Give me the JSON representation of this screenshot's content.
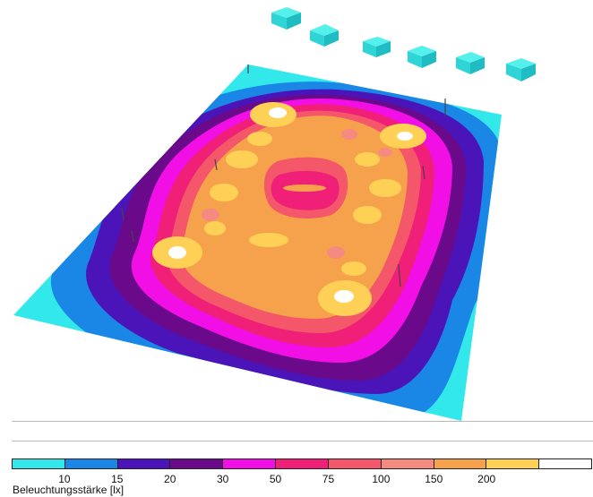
{
  "legend": {
    "title": "Beleuchtungsstärke [lx]",
    "ticks": [
      "10",
      "15",
      "20",
      "30",
      "50",
      "75",
      "100",
      "150",
      "200"
    ],
    "colors": [
      "#33e8ea",
      "#1a86e6",
      "#4b14b8",
      "#6a0a8a",
      "#f20fe6",
      "#f01f78",
      "#f4566a",
      "#f48a80",
      "#f6a24c",
      "#ffd056",
      "#ffffff"
    ]
  },
  "scene": {
    "luminaires": 6,
    "icons": [
      "luminaire-icon"
    ]
  }
}
